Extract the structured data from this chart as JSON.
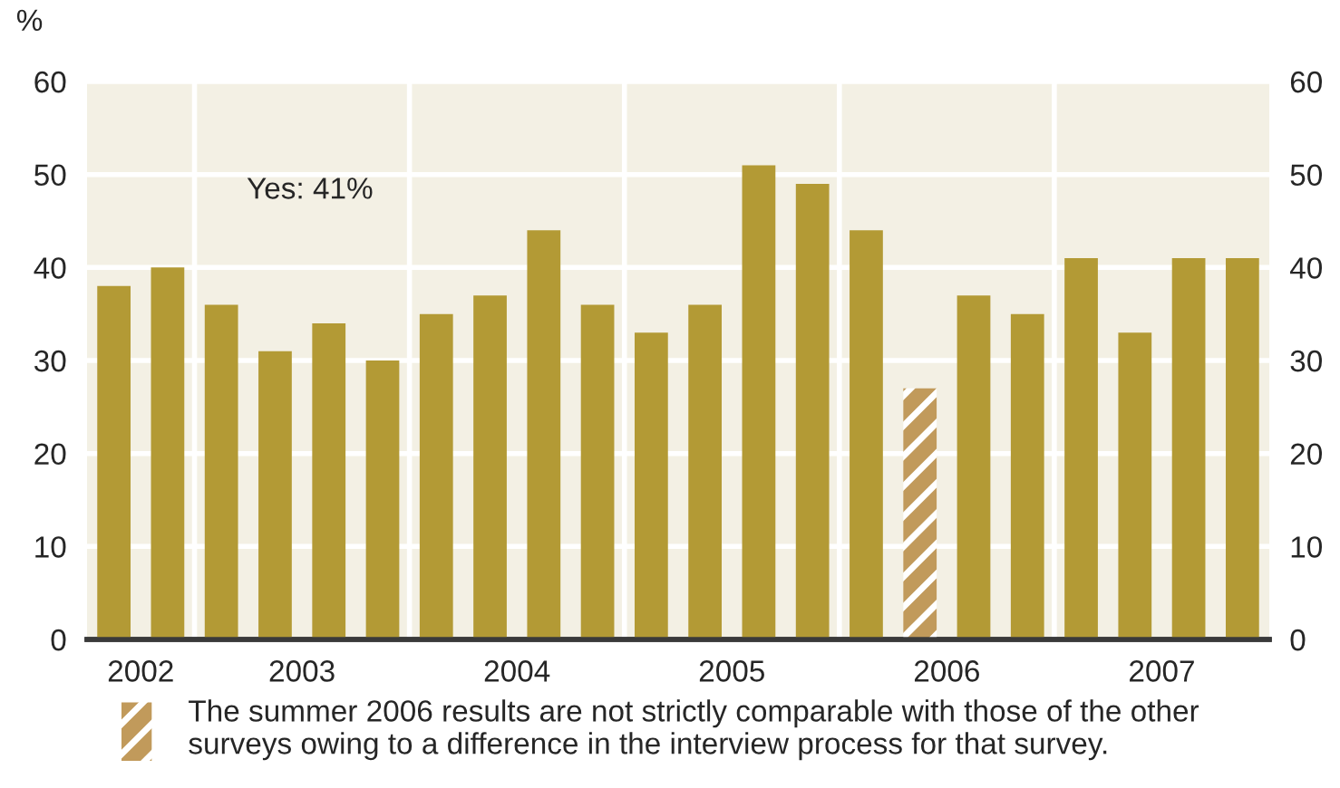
{
  "chart_data": {
    "type": "bar",
    "ylabel": "%",
    "categories": [
      "2002",
      null,
      null,
      "2003",
      null,
      null,
      null,
      "2004",
      null,
      null,
      null,
      "2005",
      null,
      null,
      null,
      "2006",
      null,
      null,
      null,
      "2007",
      null,
      null
    ],
    "series": [
      {
        "color": "#b39a35",
        "values": [
          38,
          40,
          36,
          31,
          34,
          30,
          35,
          37,
          44,
          36,
          33,
          36,
          51,
          49,
          44,
          null,
          37,
          35,
          41,
          33,
          41,
          41
        ]
      },
      {
        "name": "The summer 2006 results are not strictly comparable with those of the other\nsurveys owing to a difference in the interview process for that survey.",
        "color": "#c19a5b",
        "values": [
          null,
          null,
          null,
          null,
          null,
          null,
          null,
          null,
          null,
          null,
          null,
          null,
          null,
          null,
          null,
          27,
          null,
          null,
          null,
          null,
          null,
          null
        ]
      }
    ],
    "ylim": [
      0,
      60
    ],
    "yticks": [
      0,
      10,
      20,
      30,
      40,
      50,
      60
    ],
    "y2lim": [
      0,
      60
    ],
    "y2ticks": [
      0,
      10,
      20,
      30,
      40,
      50,
      60
    ],
    "grid": true,
    "annotations": [
      "Yes: 41%"
    ],
    "legend": "bottom"
  }
}
